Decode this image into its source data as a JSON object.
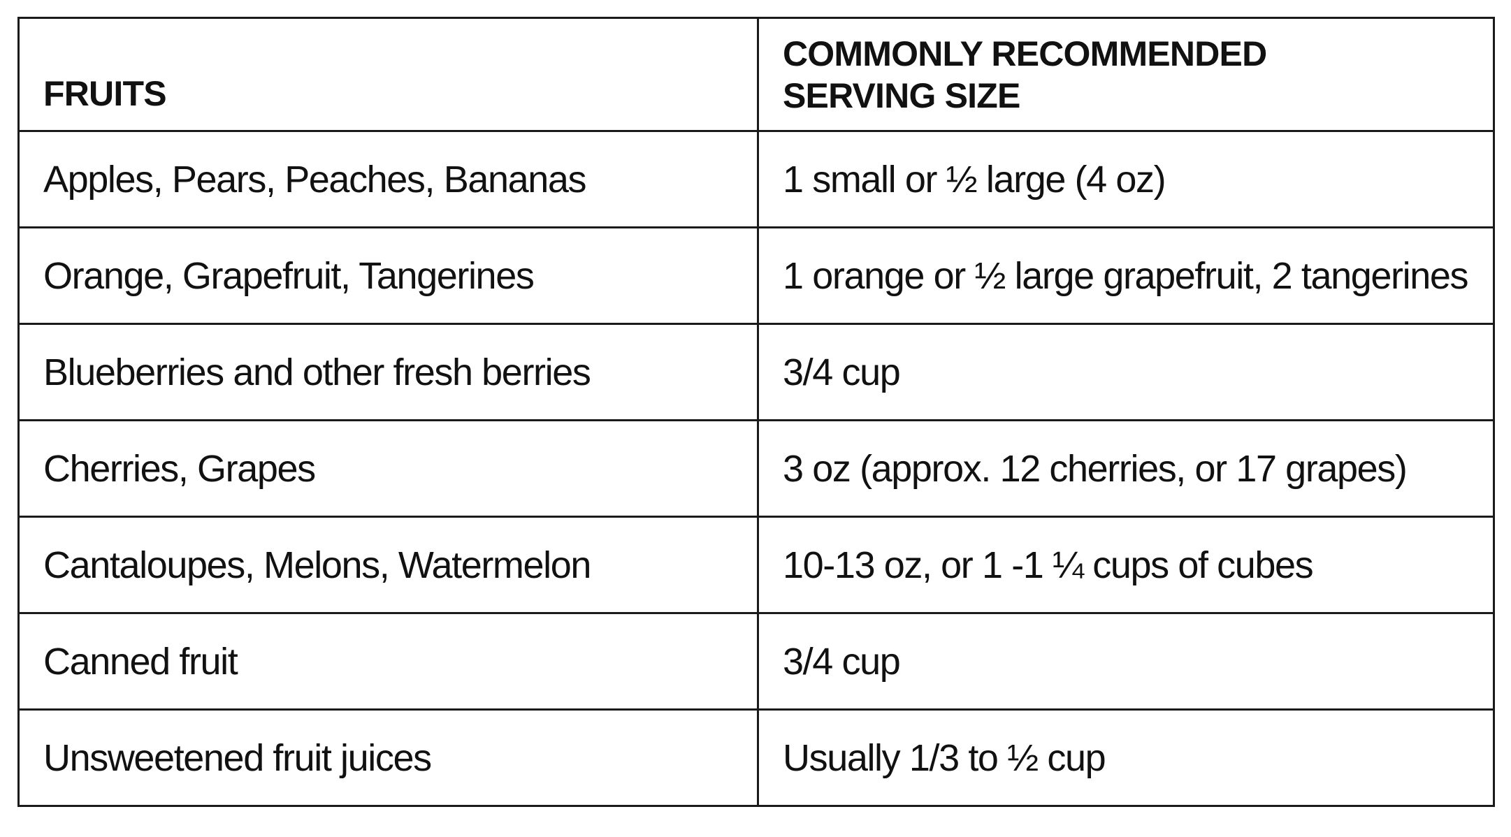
{
  "table": {
    "headers": {
      "fruits": "FRUITS",
      "serving_line1": "COMMONLY RECOMMENDED",
      "serving_line2": "SERVING SIZE"
    },
    "rows": [
      {
        "fruit": "Apples, Pears, Peaches, Bananas",
        "serving": "1 small or ½ large (4 oz)"
      },
      {
        "fruit": "Orange, Grapefruit, Tangerines",
        "serving": "1 orange or ½ large grapefruit, 2 tangerines"
      },
      {
        "fruit": "Blueberries and other fresh berries",
        "serving": "3/4 cup"
      },
      {
        "fruit": "Cherries, Grapes",
        "serving": "3 oz (approx. 12 cherries, or 17 grapes)"
      },
      {
        "fruit": "Cantaloupes, Melons, Watermelon",
        "serving": "10-13 oz, or 1 -1 ¼ cups of cubes"
      },
      {
        "fruit": "Canned fruit",
        "serving": "3/4 cup"
      },
      {
        "fruit": "Unsweetened fruit juices",
        "serving": "Usually 1/3 to ½ cup"
      }
    ]
  },
  "colors": {
    "border": "#1a1a1a",
    "text": "#111111",
    "background": "#ffffff"
  }
}
